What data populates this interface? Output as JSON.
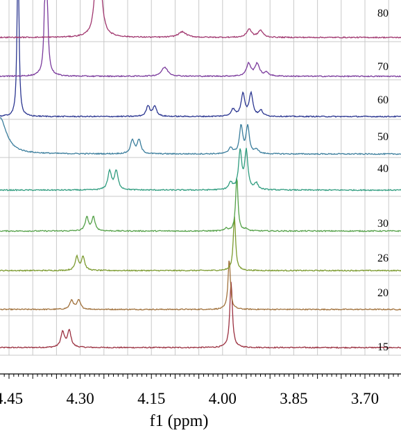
{
  "chart_data": {
    "type": "line",
    "title": "",
    "xlabel": "f1 (ppm)",
    "ylabel": "",
    "x_reversed": true,
    "xlim": [
      4.469,
      3.624
    ],
    "x_ticks": [
      4.45,
      4.3,
      4.15,
      4.0,
      3.85,
      3.7
    ],
    "x_tick_labels": [
      "4.45",
      "4.30",
      "4.15",
      "4.00",
      "3.85",
      "3.70"
    ],
    "grid": true,
    "colors": [
      "#9a2f3f",
      "#a0703a",
      "#7b9a2e",
      "#52a046",
      "#2e9c7e",
      "#3a7d9c",
      "#2a3590",
      "#7a3a9c",
      "#a0366e"
    ],
    "series": [
      {
        "name": "15",
        "color": "#9a2f3f",
        "peaks": [
          {
            "ppm": 4.337,
            "h": 22,
            "w": 0.0045
          },
          {
            "ppm": 4.323,
            "h": 24,
            "w": 0.0045
          },
          {
            "ppm": 3.982,
            "h": 95,
            "w": 0.0033
          }
        ]
      },
      {
        "name": "20",
        "color": "#a0703a",
        "peaks": [
          {
            "ppm": 4.318,
            "h": 13,
            "w": 0.0045
          },
          {
            "ppm": 4.303,
            "h": 13,
            "w": 0.0045
          },
          {
            "ppm": 3.986,
            "h": 73,
            "w": 0.003
          }
        ]
      },
      {
        "name": "26",
        "color": "#7b9a2e",
        "peaks": [
          {
            "ppm": 4.307,
            "h": 20,
            "w": 0.004
          },
          {
            "ppm": 4.294,
            "h": 20,
            "w": 0.004
          },
          {
            "ppm": 3.975,
            "h": 78,
            "w": 0.003
          }
        ]
      },
      {
        "name": "30",
        "color": "#52a046",
        "peaks": [
          {
            "ppm": 4.286,
            "h": 20,
            "w": 0.004
          },
          {
            "ppm": 4.272,
            "h": 20,
            "w": 0.004
          },
          {
            "ppm": 3.992,
            "h": 4,
            "w": 0.003
          },
          {
            "ppm": 3.97,
            "h": 78,
            "w": 0.003
          },
          {
            "ppm": 3.951,
            "h": 3,
            "w": 0.003
          }
        ]
      },
      {
        "name": "40",
        "color": "#2e9c7e",
        "peaks": [
          {
            "ppm": 4.238,
            "h": 27,
            "w": 0.0045
          },
          {
            "ppm": 4.224,
            "h": 27,
            "w": 0.0045
          },
          {
            "ppm": 3.983,
            "h": 10,
            "w": 0.0045
          },
          {
            "ppm": 3.963,
            "h": 55,
            "w": 0.004
          },
          {
            "ppm": 3.95,
            "h": 55,
            "w": 0.004
          },
          {
            "ppm": 3.929,
            "h": 9,
            "w": 0.0045
          }
        ]
      },
      {
        "name": "50",
        "color": "#3a7d9c",
        "baseline_drop": 52,
        "drop_center": 4.469,
        "drop_width": 0.0165,
        "peaks": [
          {
            "ppm": 4.19,
            "h": 20,
            "w": 0.0045
          },
          {
            "ppm": 4.176,
            "h": 20,
            "w": 0.0045
          },
          {
            "ppm": 3.983,
            "h": 9,
            "w": 0.0045
          },
          {
            "ppm": 3.961,
            "h": 40,
            "w": 0.004
          },
          {
            "ppm": 3.947,
            "h": 40,
            "w": 0.004
          },
          {
            "ppm": 3.928,
            "h": 6,
            "w": 0.0045
          }
        ]
      },
      {
        "name": "60",
        "color": "#2a3590",
        "peaks": [
          {
            "ppm": 4.431,
            "h": 310,
            "w": 0.002
          },
          {
            "ppm": 4.157,
            "h": 15,
            "w": 0.0045
          },
          {
            "ppm": 4.143,
            "h": 15,
            "w": 0.0045
          },
          {
            "ppm": 3.978,
            "h": 10,
            "w": 0.005
          },
          {
            "ppm": 3.957,
            "h": 33,
            "w": 0.0045
          },
          {
            "ppm": 3.94,
            "h": 33,
            "w": 0.0045
          },
          {
            "ppm": 3.919,
            "h": 8,
            "w": 0.0045
          }
        ]
      },
      {
        "name": "70",
        "color": "#7a3a9c",
        "peaks": [
          {
            "ppm": 4.372,
            "h": 300,
            "w": 0.0025
          },
          {
            "ppm": 4.122,
            "h": 13,
            "w": 0.008
          },
          {
            "ppm": 3.945,
            "h": 18,
            "w": 0.0055
          },
          {
            "ppm": 3.927,
            "h": 18,
            "w": 0.0055
          },
          {
            "ppm": 3.907,
            "h": 5,
            "w": 0.0055
          }
        ]
      },
      {
        "name": "80",
        "color": "#a0366e",
        "peaks": [
          {
            "ppm": 4.262,
            "h": 260,
            "w": 0.0045
          },
          {
            "ppm": 4.085,
            "h": 8,
            "w": 0.01
          },
          {
            "ppm": 3.944,
            "h": 12,
            "w": 0.006
          },
          {
            "ppm": 3.92,
            "h": 10,
            "w": 0.006
          }
        ]
      }
    ]
  }
}
